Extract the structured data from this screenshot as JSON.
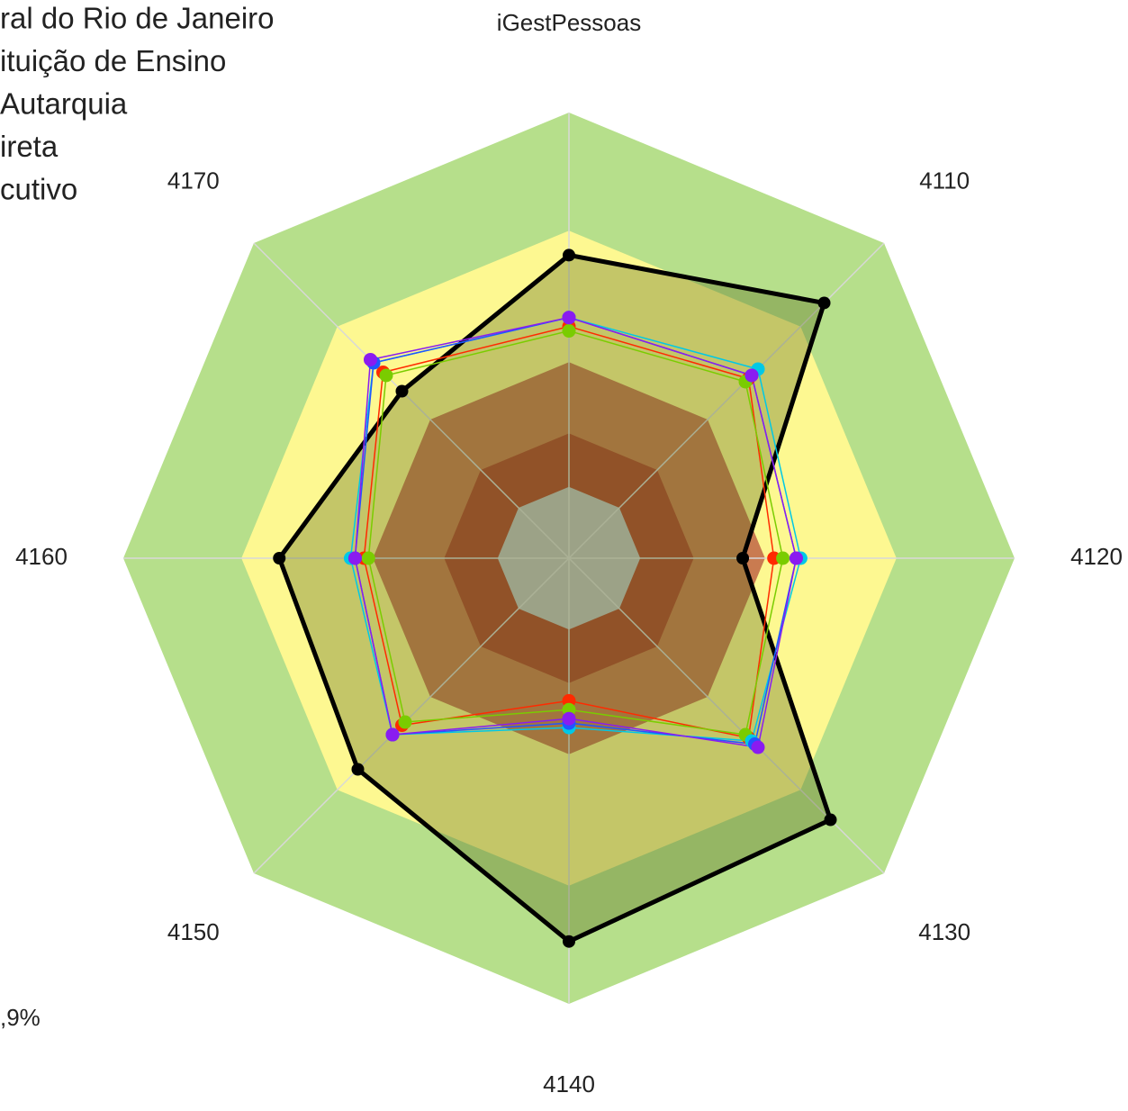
{
  "chart_data": {
    "type": "radar",
    "legend_lines": [
      "ral do Rio de Janeiro",
      "ituição de Ensino",
      "Autarquia",
      "ireta",
      "cutivo"
    ],
    "footnote": ",9%",
    "categories": [
      "iGestPessoas",
      "4110",
      "4120",
      "4130",
      "4140",
      "4150",
      "4160",
      "4170"
    ],
    "rlim": [
      0,
      100
    ],
    "bands": [
      {
        "value": 100,
        "color": "#b6df8b"
      },
      {
        "value": 73.5,
        "color": "#fdf891"
      },
      {
        "value": 44,
        "color": "#c97b50"
      },
      {
        "value": 28,
        "color": "#b0452f"
      },
      {
        "value": 16,
        "color": "#c0c0c0"
      }
    ],
    "series": [
      {
        "color": "#000000",
        "fill": "#5a6a1c",
        "values": [
          68,
          81,
          39,
          83,
          86,
          67,
          65,
          53
        ]
      },
      {
        "color": "#ff2a00",
        "values": [
          52,
          57,
          46,
          57,
          32,
          53,
          46,
          59
        ]
      },
      {
        "color": "#7acc00",
        "values": [
          51,
          56,
          48,
          56,
          34,
          52,
          45,
          58
        ]
      },
      {
        "color": "#00c8e6",
        "values": [
          54,
          60,
          52,
          58,
          38,
          56,
          49,
          62
        ]
      },
      {
        "color": "#2255ff",
        "values": [
          54,
          58,
          51,
          59,
          37,
          56,
          48,
          62
        ]
      },
      {
        "color": "#8a1cf0",
        "values": [
          54,
          58,
          51,
          60,
          36,
          56,
          48,
          63
        ]
      }
    ]
  }
}
